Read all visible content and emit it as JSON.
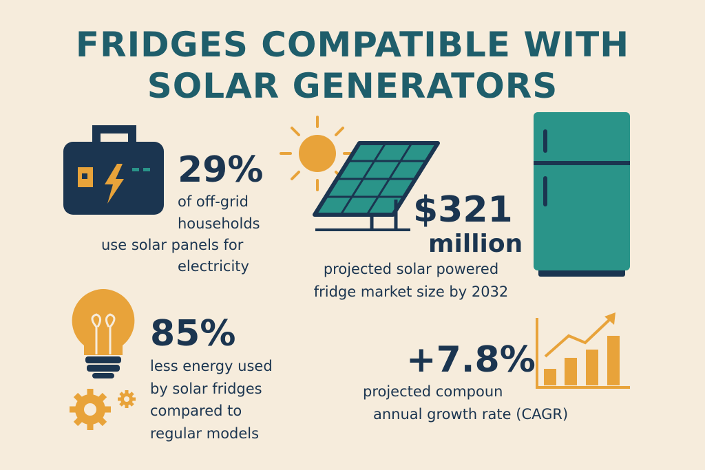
{
  "header": {
    "title_lines": [
      "FRIDGES COMPATIBLE WITH",
      "SOLAR GENERATORS"
    ]
  },
  "stats": [
    {
      "value": "29%",
      "lines": [
        "of off-grid",
        "households",
        "use solar panels for",
        "electricity"
      ]
    },
    {
      "value": "$321",
      "unit": "million",
      "lines": [
        "projected solar powered",
        "fridge market size by 2032"
      ]
    },
    {
      "value": "85%",
      "lines": [
        "less energy used",
        "by solar fridges",
        "compared to",
        "regular models"
      ]
    },
    {
      "value": "+7.8%",
      "lines": [
        "projected compoun",
        "annual growth rate (CAGR)"
      ]
    }
  ]
}
